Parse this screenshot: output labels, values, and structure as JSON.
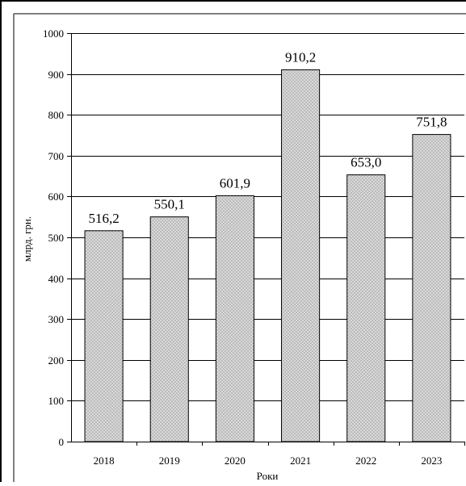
{
  "chart_data": {
    "type": "bar",
    "categories": [
      "2018",
      "2019",
      "2020",
      "2021",
      "2022",
      "2023"
    ],
    "values": [
      516.2,
      550.1,
      601.9,
      910.2,
      653.0,
      751.8
    ],
    "data_labels": [
      "516,2",
      "550,1",
      "601,9",
      "910,2",
      "653,0",
      "751,8"
    ],
    "title": "",
    "xlabel": "Роки",
    "ylabel": "млрд. грн.",
    "ylim": [
      0,
      1000
    ],
    "yticks": [
      0,
      100,
      200,
      300,
      400,
      500,
      600,
      700,
      800,
      900,
      1000
    ],
    "grid": true,
    "legend": "none",
    "bar_fill": "#d9d9d9",
    "bar_pattern_dot": "#a6a6a6",
    "bar_stroke": "#000000",
    "grid_color": "#000000"
  }
}
